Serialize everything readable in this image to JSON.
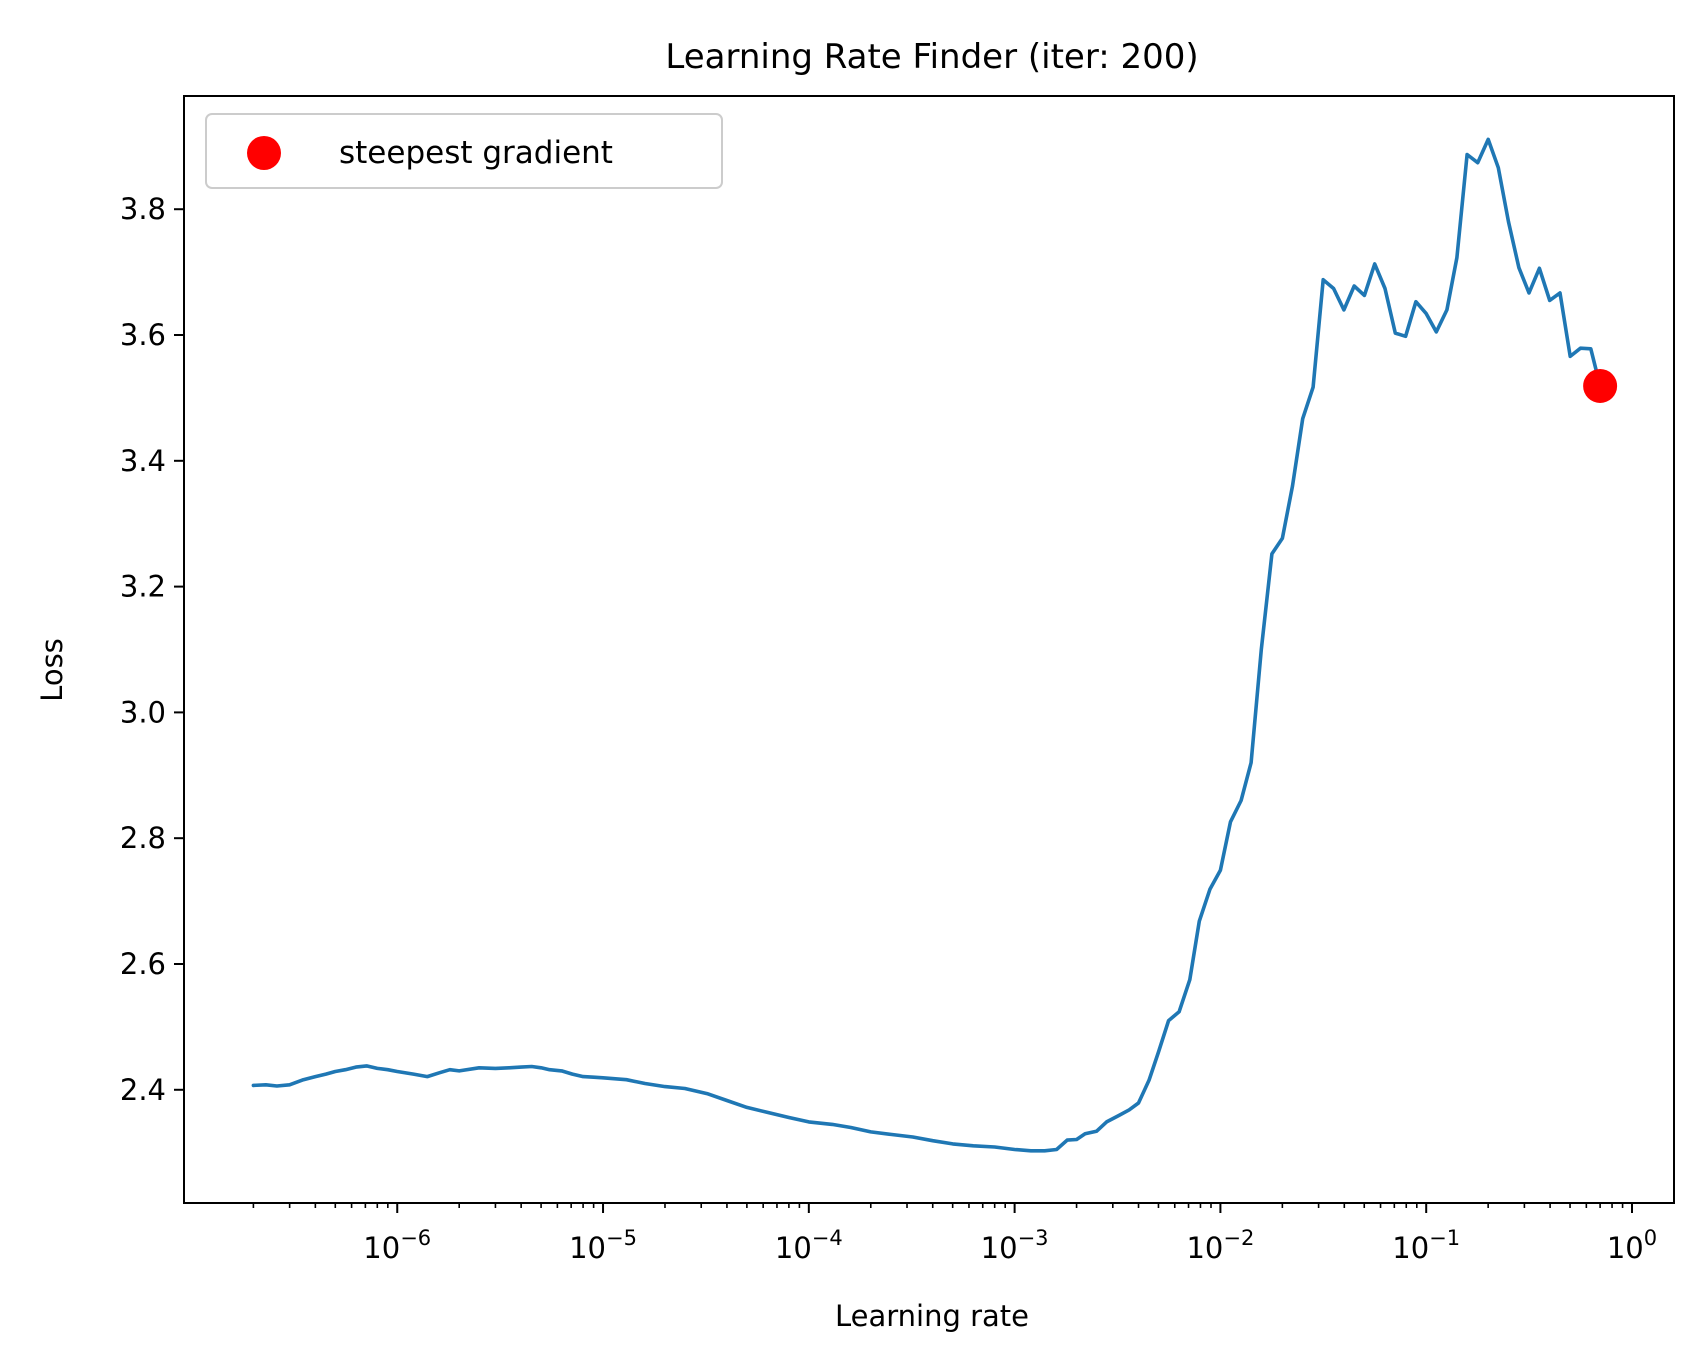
{
  "chart_data": {
    "type": "line",
    "title": "Learning Rate Finder (iter: 200)",
    "xlabel": "Learning rate",
    "ylabel": "Loss",
    "xscale": "log",
    "xlim": [
      9.2e-08,
      1.6
    ],
    "ylim": [
      2.22,
      3.98
    ],
    "grid": false,
    "legend": {
      "position": "upper left",
      "entries": [
        "steepest gradient"
      ]
    },
    "colors": {
      "line": "#1f77b4",
      "marker": "#ff0000"
    },
    "x_ticks": [
      {
        "value": 1e-06,
        "base": "10",
        "exp": "−6"
      },
      {
        "value": 1e-05,
        "base": "10",
        "exp": "−5"
      },
      {
        "value": 0.0001,
        "base": "10",
        "exp": "−4"
      },
      {
        "value": 0.001,
        "base": "10",
        "exp": "−3"
      },
      {
        "value": 0.01,
        "base": "10",
        "exp": "−2"
      },
      {
        "value": 0.1,
        "base": "10",
        "exp": "−1"
      },
      {
        "value": 1,
        "base": "10",
        "exp": "0"
      }
    ],
    "y_ticks": [
      {
        "value": 2.4,
        "label": "2.4"
      },
      {
        "value": 2.6,
        "label": "2.6"
      },
      {
        "value": 2.8,
        "label": "2.8"
      },
      {
        "value": 3.0,
        "label": "3.0"
      },
      {
        "value": 3.2,
        "label": "3.2"
      },
      {
        "value": 3.4,
        "label": "3.4"
      },
      {
        "value": 3.6,
        "label": "3.6"
      },
      {
        "value": 3.8,
        "label": "3.8"
      }
    ],
    "series": [
      {
        "x": [
          2e-07,
          2.3e-07,
          2.6e-07,
          3e-07,
          3.5e-07,
          4e-07,
          4.5e-07,
          5e-07,
          5.6e-07,
          6.3e-07,
          7.1e-07,
          8e-07,
          9e-07,
          1e-06,
          1.2e-06,
          1.4e-06,
          1.6e-06,
          1.8e-06,
          2e-06,
          2.5e-06,
          3e-06,
          3.5e-06,
          4e-06,
          4.5e-06,
          5e-06,
          5.5e-06,
          6.3e-06,
          7.1e-06,
          8e-06,
          9e-06,
          1e-05,
          1.3e-05,
          1.6e-05,
          2e-05,
          2.5e-05,
          3.2e-05,
          4e-05,
          5e-05,
          6.3e-05,
          8e-05,
          0.0001,
          0.00013,
          0.00016,
          0.0002,
          0.00025,
          0.00032,
          0.0004,
          0.0005,
          0.00063,
          0.0008,
          0.001,
          0.0012,
          0.0014,
          0.0016,
          0.0018,
          0.002,
          0.0022,
          0.0025,
          0.0028,
          0.0032,
          0.0036,
          0.004,
          0.0045,
          0.005,
          0.0056,
          0.0063,
          0.0071,
          0.0079,
          0.0089,
          0.01,
          0.0112,
          0.0126,
          0.0141,
          0.0158,
          0.0178,
          0.02,
          0.0224,
          0.0251,
          0.0282,
          0.0316,
          0.0355,
          0.0398,
          0.0447,
          0.0501,
          0.0562,
          0.0631,
          0.0708,
          0.0794,
          0.0891,
          0.1,
          0.112,
          0.126,
          0.141,
          0.158,
          0.178,
          0.2,
          0.224,
          0.251,
          0.282,
          0.316,
          0.355,
          0.398,
          0.447,
          0.501,
          0.562,
          0.631,
          0.7
        ],
        "y": [
          2.407,
          2.408,
          2.406,
          2.408,
          2.416,
          2.421,
          2.425,
          2.429,
          2.432,
          2.436,
          2.438,
          2.434,
          2.432,
          2.429,
          2.425,
          2.421,
          2.427,
          2.432,
          2.43,
          2.435,
          2.434,
          2.435,
          2.436,
          2.437,
          2.435,
          2.432,
          2.43,
          2.425,
          2.421,
          2.42,
          2.419,
          2.416,
          2.41,
          2.405,
          2.402,
          2.394,
          2.383,
          2.372,
          2.364,
          2.356,
          2.349,
          2.345,
          2.34,
          2.333,
          2.329,
          2.325,
          2.319,
          2.314,
          2.311,
          2.309,
          2.305,
          2.303,
          2.303,
          2.305,
          2.32,
          2.321,
          2.33,
          2.334,
          2.349,
          2.359,
          2.368,
          2.379,
          2.415,
          2.46,
          2.51,
          2.524,
          2.575,
          2.668,
          2.719,
          2.749,
          2.826,
          2.86,
          2.92,
          3.1,
          3.252,
          3.277,
          3.36,
          3.467,
          3.517,
          3.688,
          3.674,
          3.64,
          3.678,
          3.663,
          3.713,
          3.674,
          3.603,
          3.598,
          3.653,
          3.634,
          3.605,
          3.64,
          3.723,
          3.887,
          3.874,
          3.911,
          3.866,
          3.78,
          3.707,
          3.667,
          3.706,
          3.655,
          3.667,
          3.566,
          3.579,
          3.578,
          3.519
        ]
      }
    ],
    "markers": [
      {
        "name": "steepest gradient",
        "x": 0.7,
        "y": 3.519
      }
    ]
  }
}
